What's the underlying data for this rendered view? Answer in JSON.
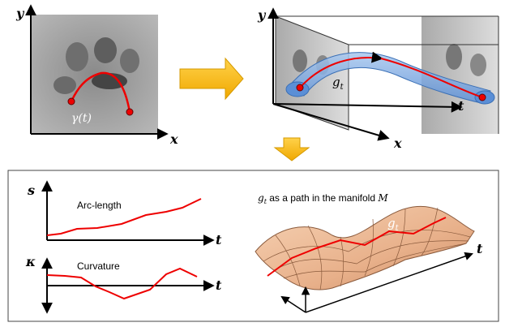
{
  "top_left": {
    "y_axis": "y",
    "x_axis": "x",
    "curve_label": "γ(t)"
  },
  "top_right": {
    "y_axis": "y",
    "t_axis": "t",
    "x_axis": "x",
    "tube_label": {
      "base": "g",
      "sub": "t"
    }
  },
  "bottom": {
    "arc_length": {
      "axis": "s",
      "title": "Arc-length",
      "t_axis": "t"
    },
    "curvature": {
      "axis": "κ",
      "title": "Curvature",
      "t_axis": "t"
    },
    "manifold": {
      "title_base": "g",
      "title_sub": "t",
      "title_rest": " as a path in the manifold ",
      "title_m": "M",
      "path_base": "g",
      "path_sub": "t",
      "t_axis": "t"
    }
  }
}
